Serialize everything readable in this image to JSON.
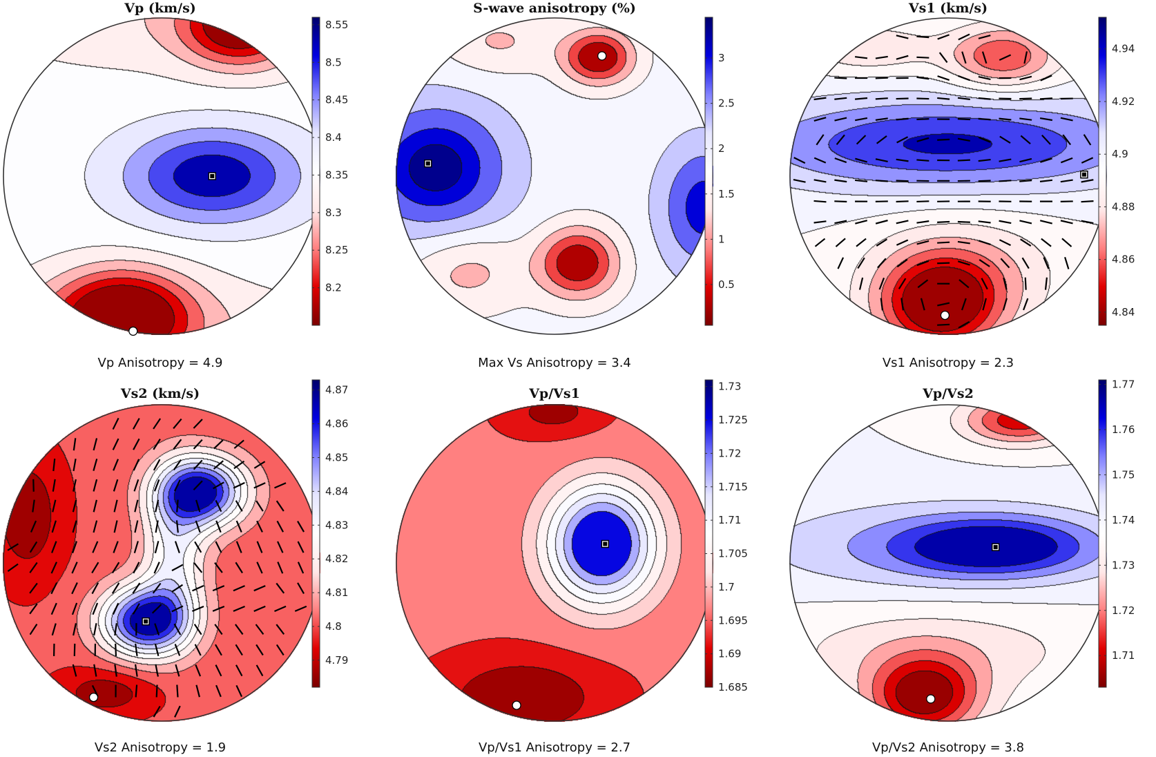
{
  "figure": {
    "colormap": [
      "#7b0000",
      "#e00000",
      "#ff8080",
      "#ffe8e8",
      "#ffffff",
      "#e6e6ff",
      "#8080ff",
      "#0000e0",
      "#00006b"
    ],
    "marker_colors": {
      "max_square": "#000000",
      "min_circle": "#ffffff"
    },
    "direction_tick_color": "#000000"
  },
  "chart_data": [
    {
      "type": "contour",
      "projection": "pole figure (circular)",
      "title": "Vp (km/s)",
      "caption": "Vp Anisotropy = 4.9",
      "colorbar": {
        "range": [
          8.15,
          8.56
        ],
        "ticks": [
          8.2,
          8.25,
          8.3,
          8.35,
          8.4,
          8.45,
          8.5,
          8.55
        ],
        "tick_labels": [
          "8.2",
          "8.25",
          "8.3",
          "8.35",
          "8.4",
          "8.45",
          "8.5",
          "8.55"
        ]
      },
      "contour_levels": [
        8.18,
        8.22,
        8.26,
        8.3,
        8.34,
        8.38,
        8.42,
        8.46,
        8.5
      ],
      "field": {
        "background": 8.36,
        "sources": [
          {
            "x": 0.32,
            "y": 0.0,
            "sx": 0.55,
            "sy": 0.3,
            "amp": 0.17
          },
          {
            "x": -0.25,
            "y": -0.88,
            "sx": 0.42,
            "sy": 0.28,
            "amp": -0.24
          },
          {
            "x": 0.5,
            "y": 0.95,
            "sx": 0.35,
            "sy": 0.25,
            "amp": -0.21
          },
          {
            "x": 0.0,
            "y": 1.0,
            "sx": 1.2,
            "sy": 0.35,
            "amp": -0.05
          },
          {
            "x": -0.2,
            "y": -1.0,
            "sx": 1.3,
            "sy": 0.35,
            "amp": -0.06
          }
        ]
      },
      "max_point": {
        "x": 0.32,
        "y": 0.0
      },
      "min_point": {
        "x": -0.18,
        "y": -0.98
      },
      "directions": false
    },
    {
      "type": "contour",
      "projection": "pole figure (circular)",
      "title": "S-wave anisotropy (%)",
      "caption": "Max Vs Anisotropy = 3.4",
      "colorbar": {
        "range": [
          0.05,
          3.45
        ],
        "ticks": [
          0.5,
          1,
          1.5,
          2,
          2.5,
          3
        ],
        "tick_labels": [
          "0.5",
          "1",
          "1.5",
          "2",
          "2.5",
          "3"
        ]
      },
      "contour_levels": [
        0.5,
        0.9,
        1.3,
        1.7,
        2.1,
        2.5,
        2.9,
        3.2
      ],
      "field": {
        "background": 1.85,
        "sources": [
          {
            "x": -0.75,
            "y": 0.05,
            "sx": 0.45,
            "sy": 0.4,
            "amp": 1.55
          },
          {
            "x": 0.95,
            "y": -0.2,
            "sx": 0.28,
            "sy": 0.4,
            "amp": 1.25
          },
          {
            "x": 0.28,
            "y": 0.75,
            "sx": 0.22,
            "sy": 0.17,
            "amp": -1.8
          },
          {
            "x": 0.15,
            "y": -0.55,
            "sx": 0.25,
            "sy": 0.22,
            "amp": -1.75
          },
          {
            "x": -0.55,
            "y": -0.6,
            "sx": 0.35,
            "sy": 0.25,
            "amp": -0.7
          },
          {
            "x": -0.35,
            "y": 0.85,
            "sx": 0.35,
            "sy": 0.2,
            "amp": -0.6
          }
        ]
      },
      "max_point": {
        "x": -0.8,
        "y": 0.08
      },
      "min_point": {
        "x": 0.3,
        "y": 0.76
      },
      "directions": false
    },
    {
      "type": "contour",
      "projection": "pole figure (circular)",
      "title": "Vs1 (km/s)",
      "caption": "Vs1 Anisotropy = 2.3",
      "colorbar": {
        "range": [
          4.835,
          4.952
        ],
        "ticks": [
          4.84,
          4.86,
          4.88,
          4.9,
          4.92,
          4.94
        ],
        "tick_labels": [
          "4.84",
          "4.86",
          "4.88",
          "4.9",
          "4.92",
          "4.94"
        ]
      },
      "contour_levels": [
        4.845,
        4.855,
        4.865,
        4.875,
        4.885,
        4.895,
        4.905,
        4.915,
        4.925,
        4.935
      ],
      "field": {
        "background": 4.895,
        "sources": [
          {
            "x": 0.0,
            "y": 0.2,
            "sx": 1.3,
            "sy": 0.3,
            "amp": 0.042
          },
          {
            "x": -0.05,
            "y": -0.82,
            "sx": 0.38,
            "sy": 0.3,
            "amp": -0.06
          },
          {
            "x": 0.35,
            "y": 0.75,
            "sx": 0.35,
            "sy": 0.2,
            "amp": -0.04
          },
          {
            "x": 0.1,
            "y": -0.6,
            "sx": 0.6,
            "sy": 0.35,
            "amp": -0.02
          },
          {
            "x": -0.5,
            "y": 0.8,
            "sx": 0.4,
            "sy": 0.15,
            "amp": -0.02
          }
        ]
      },
      "max_point": {
        "x": 0.86,
        "y": 0.01
      },
      "min_point": {
        "x": -0.02,
        "y": -0.88
      },
      "directions": true
    },
    {
      "type": "contour",
      "projection": "pole figure (circular)",
      "title": "Vs2 (km/s)",
      "caption": "Vs2 Anisotropy = 1.9",
      "colorbar": {
        "range": [
          4.782,
          4.873
        ],
        "ticks": [
          4.79,
          4.8,
          4.81,
          4.82,
          4.83,
          4.84,
          4.85,
          4.86,
          4.87
        ],
        "tick_labels": [
          "4.79",
          "4.8",
          "4.81",
          "4.82",
          "4.83",
          "4.84",
          "4.85",
          "4.86",
          "4.87"
        ]
      },
      "contour_levels": [
        4.79,
        4.798,
        4.806,
        4.814,
        4.822,
        4.83,
        4.838,
        4.846,
        4.854,
        4.862
      ],
      "field": {
        "background": 4.8,
        "sources": [
          {
            "x": 0.25,
            "y": 0.45,
            "sx": 0.28,
            "sy": 0.22,
            "amp": 0.068
          },
          {
            "x": -0.1,
            "y": -0.37,
            "sx": 0.28,
            "sy": 0.22,
            "amp": 0.068
          },
          {
            "x": 0.08,
            "y": 0.05,
            "sx": 0.2,
            "sy": 0.45,
            "amp": 0.03
          },
          {
            "x": -0.85,
            "y": 0.3,
            "sx": 0.22,
            "sy": 0.4,
            "amp": -0.016
          },
          {
            "x": -0.35,
            "y": -0.82,
            "sx": 0.3,
            "sy": 0.15,
            "amp": -0.015
          }
        ]
      },
      "max_point": {
        "x": -0.1,
        "y": -0.37
      },
      "min_point": {
        "x": -0.43,
        "y": -0.85
      },
      "directions": true
    },
    {
      "type": "contour",
      "projection": "pole figure (circular)",
      "title": "Vp/Vs1",
      "caption": "Vp/Vs1 Anisotropy = 2.7",
      "colorbar": {
        "range": [
          1.685,
          1.731
        ],
        "ticks": [
          1.685,
          1.69,
          1.695,
          1.7,
          1.705,
          1.71,
          1.715,
          1.72,
          1.725,
          1.73
        ],
        "tick_labels": [
          "1.685",
          "1.69",
          "1.695",
          "1.7",
          "1.705",
          "1.71",
          "1.715",
          "1.72",
          "1.725",
          "1.73"
        ]
      },
      "contour_levels": [
        1.689,
        1.694,
        1.699,
        1.703,
        1.707,
        1.711,
        1.715,
        1.719
      ],
      "field": {
        "background": 1.695,
        "sources": [
          {
            "x": 0.3,
            "y": 0.12,
            "sx": 0.35,
            "sy": 0.38,
            "amp": 0.032
          },
          {
            "x": -0.2,
            "y": -0.85,
            "sx": 0.5,
            "sy": 0.25,
            "amp": -0.011
          },
          {
            "x": 0.0,
            "y": 0.95,
            "sx": 0.3,
            "sy": 0.15,
            "amp": -0.008
          }
        ]
      },
      "max_point": {
        "x": 0.32,
        "y": 0.12
      },
      "min_point": {
        "x": -0.24,
        "y": -0.9
      },
      "directions": false
    },
    {
      "type": "contour",
      "projection": "pole figure (circular)",
      "title": "Vp/Vs2",
      "caption": "Vp/Vs2 Anisotropy = 3.8",
      "colorbar": {
        "range": [
          1.703,
          1.771
        ],
        "ticks": [
          1.71,
          1.72,
          1.73,
          1.74,
          1.75,
          1.76,
          1.77
        ],
        "tick_labels": [
          "1.71",
          "1.72",
          "1.73",
          "1.74",
          "1.75",
          "1.76",
          "1.77"
        ]
      },
      "contour_levels": [
        1.708,
        1.714,
        1.72,
        1.726,
        1.732,
        1.738,
        1.744,
        1.75,
        1.756,
        1.762
      ],
      "field": {
        "background": 1.738,
        "sources": [
          {
            "x": 0.3,
            "y": 0.1,
            "sx": 0.6,
            "sy": 0.18,
            "amp": 0.025
          },
          {
            "x": -0.1,
            "y": 0.1,
            "sx": 1.2,
            "sy": 0.3,
            "amp": 0.012
          },
          {
            "x": -0.15,
            "y": -0.85,
            "sx": 0.35,
            "sy": 0.25,
            "amp": -0.034
          },
          {
            "x": 0.45,
            "y": 0.9,
            "sx": 0.35,
            "sy": 0.15,
            "amp": -0.028
          },
          {
            "x": -0.1,
            "y": -0.55,
            "sx": 1.0,
            "sy": 0.3,
            "amp": -0.01
          }
        ]
      },
      "max_point": {
        "x": 0.3,
        "y": 0.1
      },
      "min_point": {
        "x": -0.11,
        "y": -0.86
      },
      "directions": false
    }
  ]
}
